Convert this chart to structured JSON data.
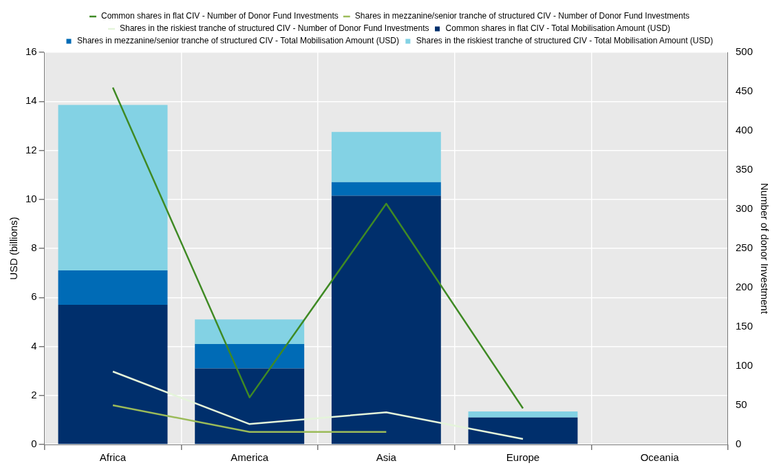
{
  "chart_data": {
    "type": "bar",
    "stacked": true,
    "categories": [
      "Africa",
      "America",
      "Asia",
      "Europe",
      "Oceania"
    ],
    "ylabel": "USD (billions)",
    "y2label": "Number of donor Investment",
    "ylim": [
      0,
      16
    ],
    "yticks": [
      0,
      2,
      4,
      6,
      8,
      10,
      12,
      14,
      16
    ],
    "y2lim": [
      0,
      500
    ],
    "y2ticks": [
      0,
      50,
      100,
      150,
      200,
      250,
      300,
      350,
      400,
      450,
      500
    ],
    "grid": true,
    "legend": "top",
    "marker": "none",
    "line_style": "solid",
    "series": [
      {
        "name": "Common shares in flat CIV - Total Mobilisation Amount (USD)",
        "color": "#002f6c",
        "values": [
          5.7,
          3.1,
          10.15,
          1.1,
          0
        ]
      },
      {
        "name": "Shares in mezzanine/senior tranche of structured CIV - Total Mobilisation Amount (USD)",
        "color": "#006bb6",
        "values": [
          1.4,
          1.0,
          0.55,
          0,
          0
        ]
      },
      {
        "name": "Shares in the riskiest tranche of structured CIV - Total Mobilisation Amount (USD)",
        "color": "#83d2e4",
        "values": [
          6.75,
          1.0,
          2.05,
          0.25,
          0
        ]
      },
      {
        "name": "Common shares in flat CIV - Number of Donor Fund Investments",
        "type": "line",
        "axis": "y2",
        "color": "#3f8a24",
        "values": [
          455,
          60,
          307,
          46,
          null
        ]
      },
      {
        "name": "Shares in mezzanine/senior tranche of structured CIV - Number of Donor Fund Investments",
        "type": "line",
        "axis": "y2",
        "color": "#9bbb59",
        "values": [
          50,
          16,
          16,
          null,
          null
        ]
      },
      {
        "name": "Shares in the riskiest tranche of structured CIV - Number of Donor Fund Investments",
        "type": "line",
        "axis": "y2",
        "color": "#e4f4da",
        "values": [
          93,
          26,
          41,
          7,
          null
        ]
      }
    ]
  }
}
